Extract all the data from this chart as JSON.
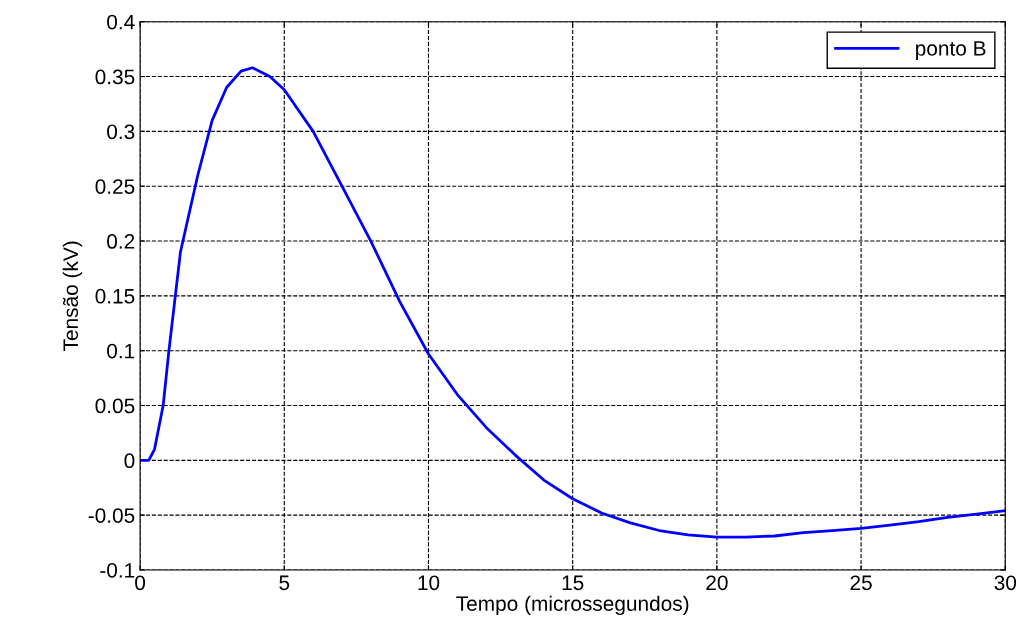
{
  "chart_data": {
    "type": "line",
    "xlabel": "Tempo (microssegundos)",
    "ylabel": "Tensão (kV)",
    "xlim": [
      0,
      30
    ],
    "xticks": [
      0,
      5,
      10,
      15,
      20,
      25,
      30
    ],
    "ylim": [
      -0.1,
      0.4
    ],
    "yticks": [
      -0.1,
      -0.05,
      0,
      0.05,
      0.1,
      0.15,
      0.2,
      0.25,
      0.3,
      0.35,
      0.4
    ],
    "grid": true,
    "legend": "top right",
    "line_style": "solid",
    "series": [
      {
        "name": "ponto B",
        "color": "#0000ff",
        "x": [
          0,
          0.3,
          0.5,
          0.8,
          1,
          1.4,
          2,
          2.5,
          3,
          3.5,
          3.9,
          4.5,
          5,
          6,
          7,
          8,
          9,
          10,
          11,
          12,
          13,
          14,
          15,
          16,
          17,
          18,
          19,
          20,
          21,
          22,
          23,
          24,
          25,
          26,
          27,
          28,
          29,
          30
        ],
        "values": [
          0,
          0.0,
          0.01,
          0.05,
          0.1,
          0.19,
          0.26,
          0.31,
          0.34,
          0.355,
          0.358,
          0.35,
          0.338,
          0.3,
          0.25,
          0.2,
          0.145,
          0.097,
          0.06,
          0.03,
          0.005,
          -0.018,
          -0.035,
          -0.048,
          -0.057,
          -0.064,
          -0.068,
          -0.07,
          -0.07,
          -0.069,
          -0.066,
          -0.064,
          -0.062,
          -0.059,
          -0.056,
          -0.052,
          -0.049,
          -0.046
        ]
      }
    ]
  }
}
